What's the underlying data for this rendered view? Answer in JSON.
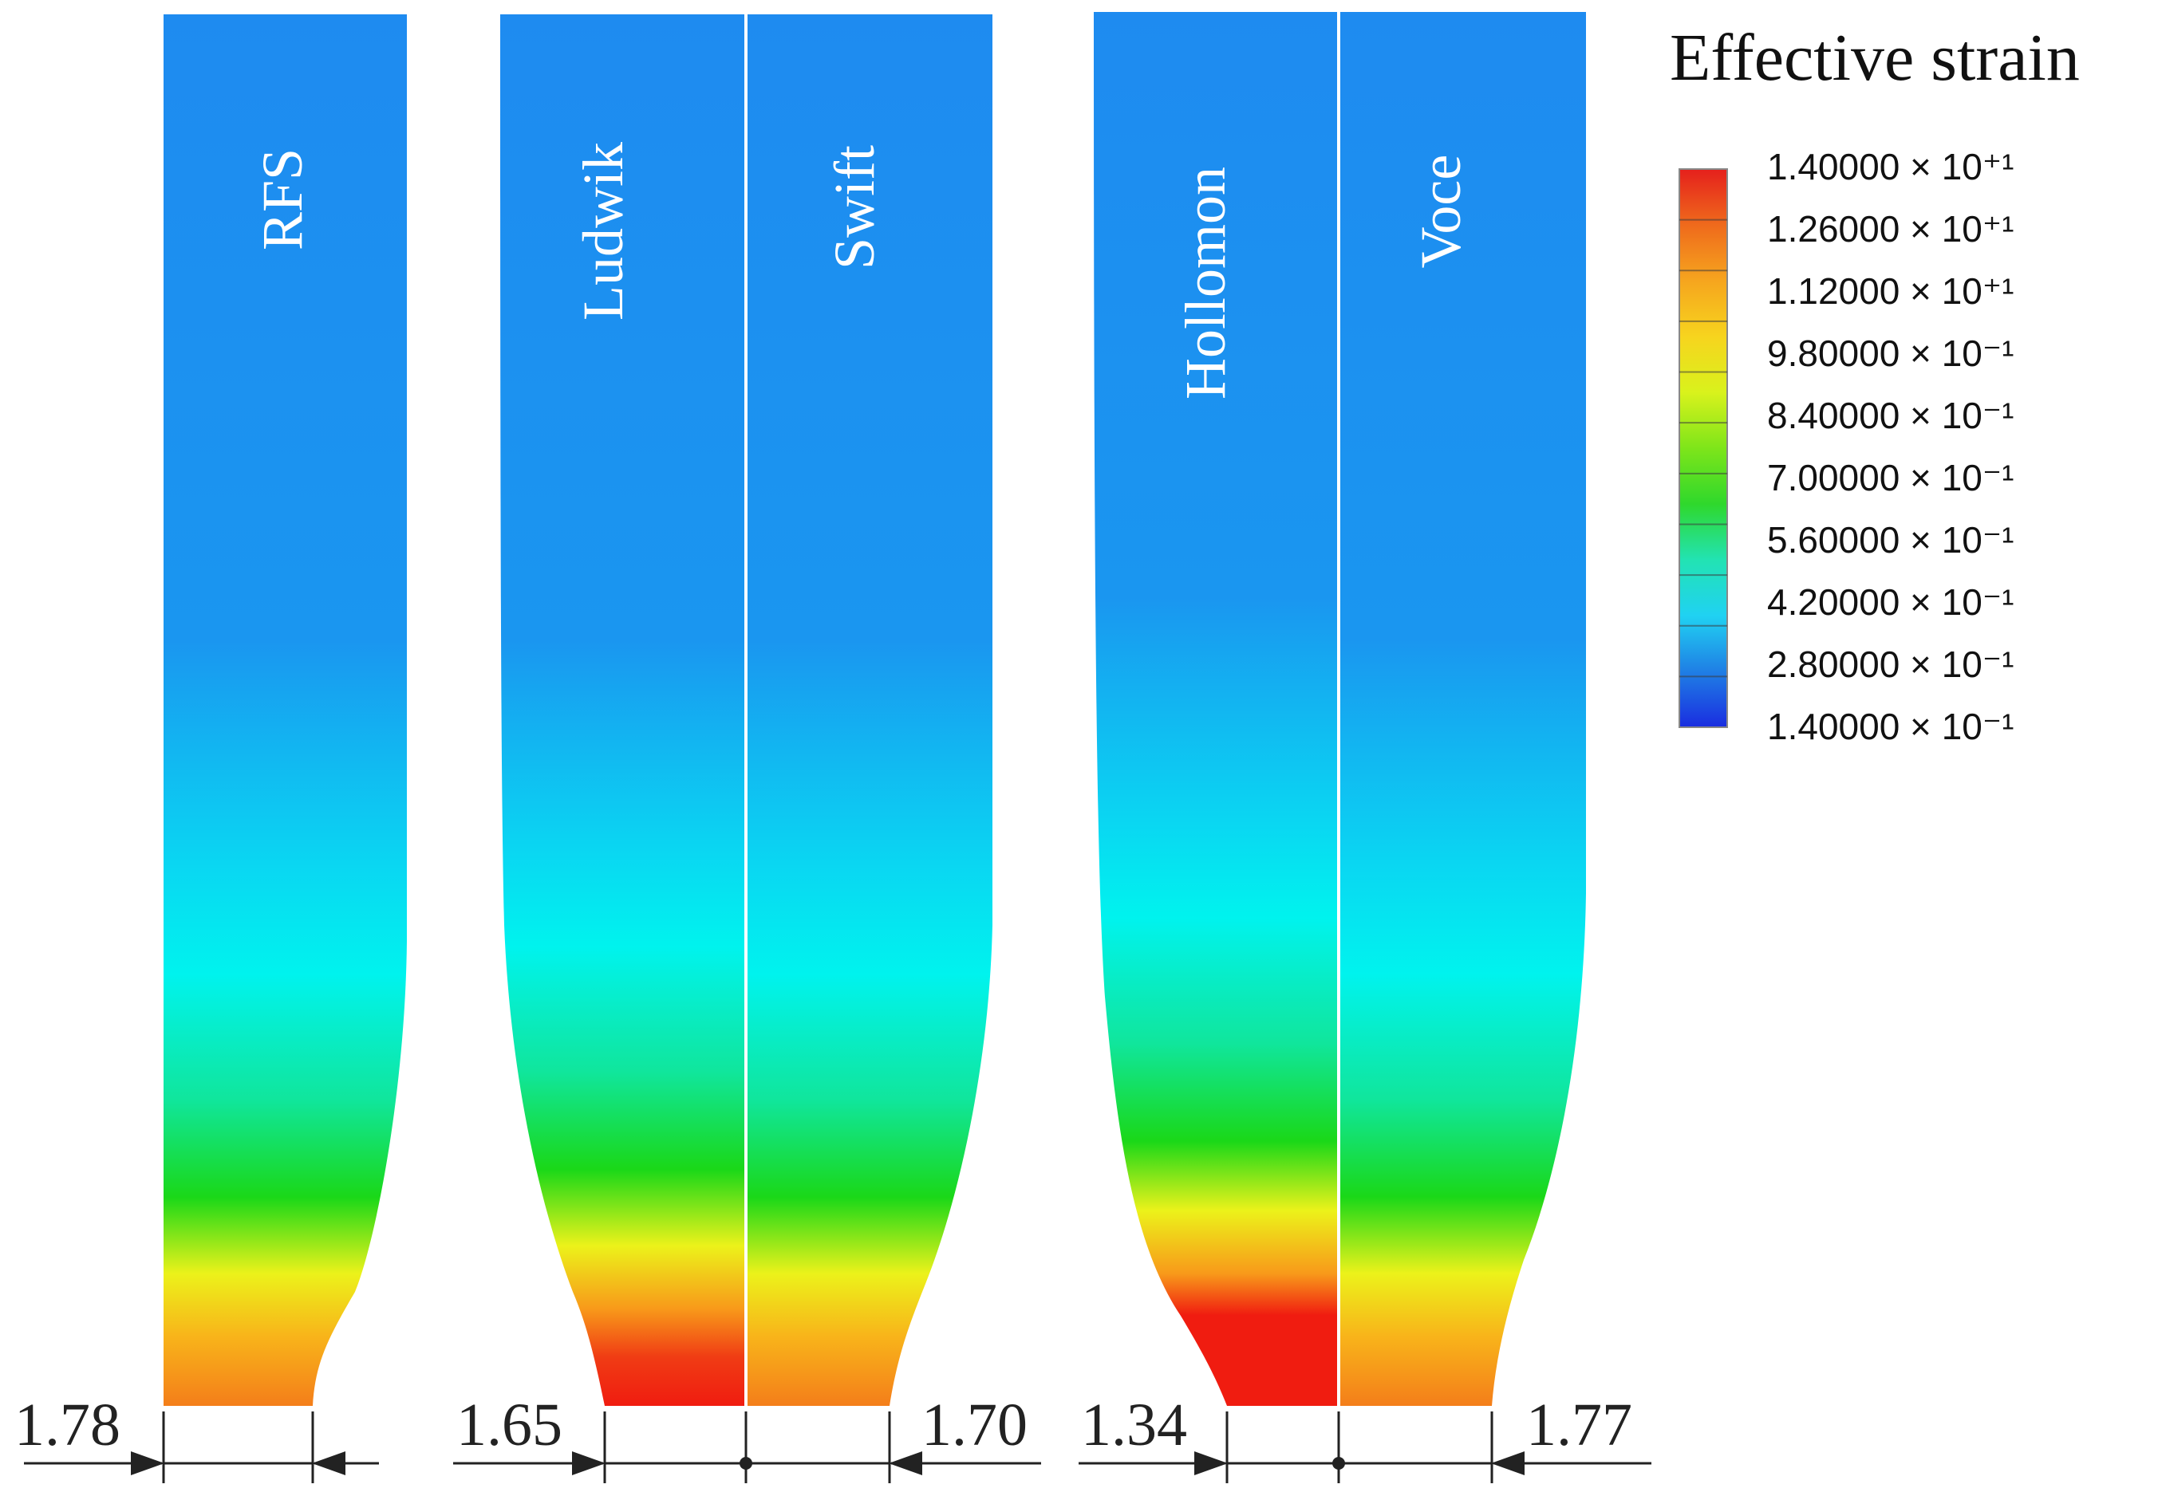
{
  "legend": {
    "title": "Effective strain",
    "labels": [
      "1.40000 × 10⁺¹",
      "1.26000 × 10⁺¹",
      "1.12000 × 10⁺¹",
      "9.80000 × 10⁻¹",
      "8.40000 × 10⁻¹",
      "7.00000 × 10⁻¹",
      "5.60000 × 10⁻¹",
      "4.20000 × 10⁻¹",
      "2.80000 × 10⁻¹",
      "1.40000 × 10⁻¹"
    ],
    "band_colors": [
      "#e5201c",
      "#ef6a1c",
      "#f6a51e",
      "#f7d41e",
      "#d9f21c",
      "#7ee51a",
      "#2fd82c",
      "#22e3b3",
      "#20d2f2",
      "#1f7fe5",
      "#1a2de0"
    ]
  },
  "specimens": [
    {
      "name": "RFS",
      "neck_width": "1.78"
    },
    {
      "name": "Ludwik",
      "neck_width": "1.65"
    },
    {
      "name": "Swift",
      "neck_width": "1.70"
    },
    {
      "name": "Hollomon",
      "neck_width": "1.34"
    },
    {
      "name": "Voce",
      "neck_width": "1.77"
    }
  ],
  "colors": {
    "blue": "#1e8bf0",
    "cyan": "#00f0f0",
    "green": "#1ada18",
    "yellow": "#f2f21a",
    "orange": "#f8a41a",
    "red": "#f01c10",
    "divider": "#ffffff",
    "dimension_line": "#222222"
  }
}
